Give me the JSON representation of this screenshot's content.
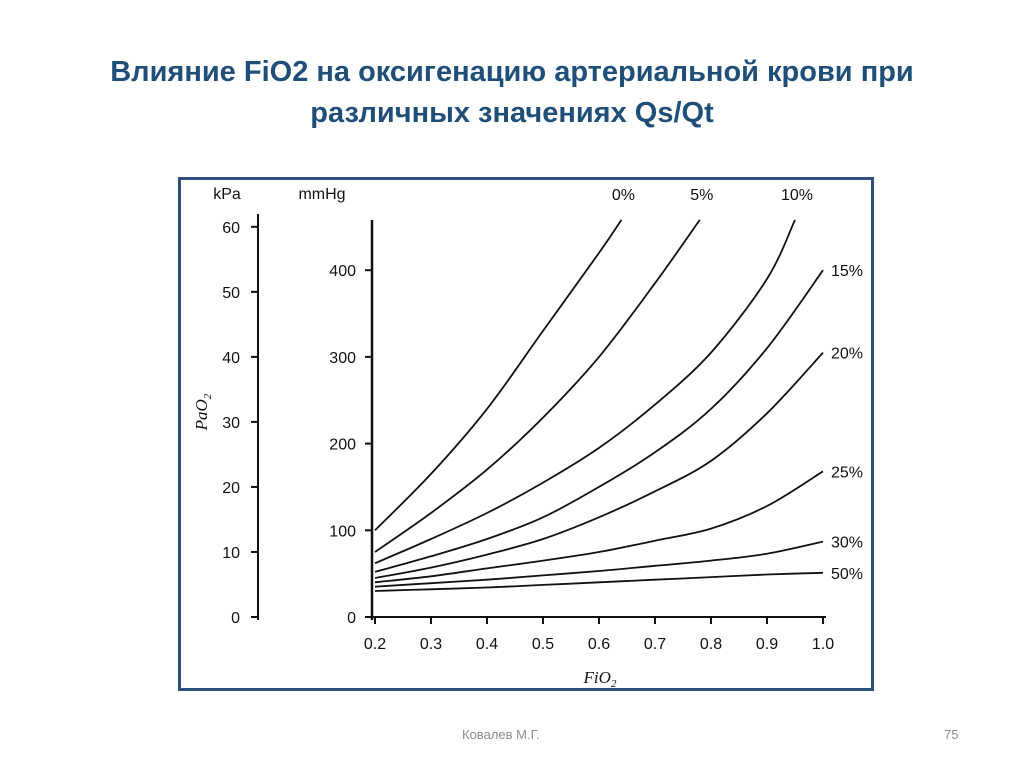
{
  "slide": {
    "title_line1": "Влияние FiO2 на оксигенацию артериальной крови при",
    "title_line2": "различных значениях Qs/Qt",
    "author": "Ковалев М.Г.",
    "page_number": "75"
  },
  "colors": {
    "title": "#1f4e79",
    "frame": "#2f4f7f",
    "curve": "#111111",
    "footer": "#8c8c8c"
  },
  "chart_data": {
    "type": "line",
    "title": "",
    "xlabel": "FiO2",
    "ylabel": "PaO2",
    "y_units": [
      "kPa",
      "mmHg"
    ],
    "xlim": [
      0.2,
      1.0
    ],
    "ylim": [
      0,
      460
    ],
    "x_ticks": [
      "0.2",
      "0.3",
      "0.4",
      "0.5",
      "0.6",
      "0.7",
      "0.8",
      "0.9",
      "1.0"
    ],
    "y_ticks_mmHg": [
      "0",
      "100",
      "200",
      "300",
      "400"
    ],
    "y_ticks_kPa": [
      "0",
      "10",
      "20",
      "30",
      "40",
      "50",
      "60"
    ],
    "grid": false,
    "legend": "none (series labelled at line ends)",
    "series": [
      {
        "name": "0%",
        "x": [
          0.2,
          0.3,
          0.4,
          0.5,
          0.6,
          0.64
        ],
        "y": [
          100,
          165,
          240,
          330,
          420,
          458
        ]
      },
      {
        "name": "5%",
        "x": [
          0.2,
          0.3,
          0.4,
          0.5,
          0.6,
          0.7,
          0.78
        ],
        "y": [
          75,
          120,
          170,
          230,
          300,
          385,
          458
        ]
      },
      {
        "name": "10%",
        "x": [
          0.2,
          0.3,
          0.4,
          0.5,
          0.6,
          0.7,
          0.8,
          0.9,
          0.95
        ],
        "y": [
          62,
          90,
          120,
          155,
          195,
          245,
          305,
          390,
          458
        ]
      },
      {
        "name": "15%",
        "x": [
          0.2,
          0.3,
          0.4,
          0.5,
          0.6,
          0.7,
          0.8,
          0.9,
          1.0
        ],
        "y": [
          52,
          70,
          90,
          115,
          150,
          190,
          240,
          310,
          400
        ]
      },
      {
        "name": "20%",
        "x": [
          0.2,
          0.3,
          0.4,
          0.5,
          0.6,
          0.7,
          0.8,
          0.9,
          1.0
        ],
        "y": [
          45,
          57,
          72,
          90,
          115,
          145,
          180,
          235,
          305
        ]
      },
      {
        "name": "25%",
        "x": [
          0.2,
          0.3,
          0.4,
          0.5,
          0.6,
          0.7,
          0.8,
          0.9,
          1.0
        ],
        "y": [
          40,
          47,
          56,
          65,
          75,
          88,
          102,
          128,
          168
        ]
      },
      {
        "name": "30%",
        "x": [
          0.2,
          0.3,
          0.4,
          0.5,
          0.6,
          0.7,
          0.8,
          0.9,
          1.0
        ],
        "y": [
          35,
          39,
          43,
          48,
          53,
          59,
          65,
          73,
          87
        ]
      },
      {
        "name": "50%",
        "x": [
          0.2,
          0.3,
          0.4,
          0.5,
          0.6,
          0.7,
          0.8,
          0.9,
          1.0
        ],
        "y": [
          30,
          32,
          34,
          37,
          40,
          43,
          46,
          49,
          51
        ]
      }
    ]
  }
}
